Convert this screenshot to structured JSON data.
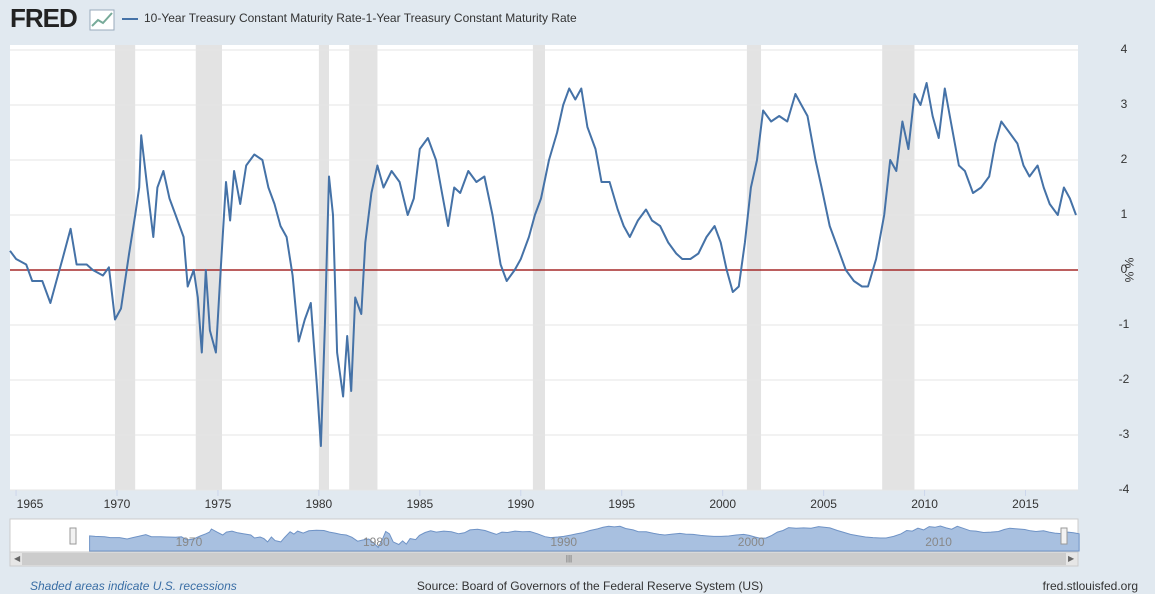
{
  "chart_data": {
    "type": "line",
    "logo": "FRED",
    "legend_position": "top-left",
    "series": [
      {
        "name": "10-Year Treasury Constant Maturity Rate-1-Year Treasury Constant Maturity Rate",
        "color": "#4572a7",
        "x": [
          1964.7,
          1965.0,
          1965.5,
          1965.8,
          1966.3,
          1966.7,
          1967.0,
          1967.3,
          1967.7,
          1968.0,
          1968.5,
          1968.8,
          1969.3,
          1969.6,
          1969.9,
          1970.2,
          1970.6,
          1970.9,
          1971.1,
          1971.2,
          1971.5,
          1971.8,
          1972.0,
          1972.3,
          1972.6,
          1972.9,
          1973.3,
          1973.5,
          1973.8,
          1974.0,
          1974.2,
          1974.4,
          1974.6,
          1974.9,
          1975.1,
          1975.4,
          1975.6,
          1975.8,
          1976.1,
          1976.4,
          1976.8,
          1977.2,
          1977.5,
          1977.8,
          1978.1,
          1978.4,
          1978.7,
          1979.0,
          1979.3,
          1979.6,
          1979.9,
          1980.1,
          1980.3,
          1980.5,
          1980.7,
          1980.9,
          1981.2,
          1981.4,
          1981.6,
          1981.8,
          1982.1,
          1982.3,
          1982.6,
          1982.9,
          1983.2,
          1983.6,
          1984.0,
          1984.4,
          1984.7,
          1985.0,
          1985.4,
          1985.8,
          1986.1,
          1986.4,
          1986.7,
          1987.0,
          1987.4,
          1987.8,
          1988.2,
          1988.6,
          1989.0,
          1989.3,
          1989.7,
          1990.0,
          1990.4,
          1990.7,
          1991.0,
          1991.4,
          1991.8,
          1992.1,
          1992.4,
          1992.7,
          1993.0,
          1993.3,
          1993.7,
          1994.0,
          1994.4,
          1994.8,
          1995.1,
          1995.4,
          1995.8,
          1996.2,
          1996.5,
          1996.9,
          1997.3,
          1997.7,
          1998.0,
          1998.4,
          1998.8,
          1999.2,
          1999.6,
          1999.9,
          2000.2,
          2000.5,
          2000.8,
          2001.1,
          2001.4,
          2001.7,
          2002.0,
          2002.4,
          2002.8,
          2003.2,
          2003.6,
          2003.9,
          2004.2,
          2004.6,
          2004.9,
          2005.3,
          2005.7,
          2006.1,
          2006.5,
          2006.9,
          2007.2,
          2007.6,
          2008.0,
          2008.3,
          2008.6,
          2008.9,
          2009.2,
          2009.5,
          2009.8,
          2010.1,
          2010.4,
          2010.7,
          2011.0,
          2011.3,
          2011.7,
          2012.0,
          2012.4,
          2012.8,
          2013.2,
          2013.5,
          2013.8,
          2014.2,
          2014.6,
          2014.9,
          2015.2,
          2015.6,
          2015.9,
          2016.2,
          2016.6,
          2016.9,
          2017.2,
          2017.5
        ],
        "values": [
          0.35,
          0.2,
          0.1,
          -0.2,
          -0.2,
          -0.6,
          -0.2,
          0.2,
          0.75,
          0.1,
          0.1,
          0.0,
          -0.1,
          0.05,
          -0.9,
          -0.7,
          0.3,
          1.0,
          1.5,
          2.45,
          1.5,
          0.6,
          1.5,
          1.8,
          1.3,
          1.0,
          0.6,
          -0.3,
          0.0,
          -0.5,
          -1.5,
          0.0,
          -1.1,
          -1.5,
          -0.2,
          1.6,
          0.9,
          1.8,
          1.2,
          1.9,
          2.1,
          2.0,
          1.5,
          1.2,
          0.8,
          0.6,
          -0.1,
          -1.3,
          -0.9,
          -0.6,
          -2.1,
          -3.2,
          -1.0,
          1.7,
          1.0,
          -1.5,
          -2.3,
          -1.2,
          -2.2,
          -0.5,
          -0.8,
          0.5,
          1.4,
          1.9,
          1.5,
          1.8,
          1.6,
          1.0,
          1.3,
          2.2,
          2.4,
          2.0,
          1.4,
          0.8,
          1.5,
          1.4,
          1.8,
          1.6,
          1.7,
          1.0,
          0.1,
          -0.2,
          0.0,
          0.2,
          0.6,
          1.0,
          1.3,
          2.0,
          2.5,
          3.0,
          3.3,
          3.1,
          3.3,
          2.6,
          2.2,
          1.6,
          1.6,
          1.1,
          0.8,
          0.6,
          0.9,
          1.1,
          0.9,
          0.8,
          0.5,
          0.3,
          0.2,
          0.2,
          0.3,
          0.6,
          0.8,
          0.5,
          0.0,
          -0.4,
          -0.3,
          0.5,
          1.5,
          2.0,
          2.9,
          2.7,
          2.8,
          2.7,
          3.2,
          3.0,
          2.8,
          2.0,
          1.5,
          0.8,
          0.4,
          0.0,
          -0.2,
          -0.3,
          -0.3,
          0.2,
          1.0,
          2.0,
          1.8,
          2.7,
          2.2,
          3.2,
          3.0,
          3.4,
          2.8,
          2.4,
          3.3,
          2.7,
          1.9,
          1.8,
          1.4,
          1.5,
          1.7,
          2.3,
          2.7,
          2.5,
          2.3,
          1.9,
          1.7,
          1.9,
          1.5,
          1.2,
          1.0,
          1.5,
          1.3,
          1.0
        ]
      }
    ],
    "xlim": [
      1964.7,
      2017.6
    ],
    "xticks": [
      1965,
      1970,
      1975,
      1980,
      1985,
      1990,
      1995,
      2000,
      2005,
      2010,
      2015
    ],
    "ylim": [
      -4,
      4
    ],
    "yticks": [
      4,
      3,
      2,
      1,
      0,
      -1,
      -2,
      -3,
      -4
    ],
    "ylabel": "% %",
    "grid": true,
    "reference_line": {
      "value": 0,
      "color": "#a52a2a"
    },
    "recessions": [
      [
        1969.9,
        1970.9
      ],
      [
        1973.9,
        1975.2
      ],
      [
        1980.0,
        1980.5
      ],
      [
        1981.5,
        1982.9
      ],
      [
        1990.6,
        1991.2
      ],
      [
        2001.2,
        2001.9
      ],
      [
        2007.9,
        2009.5
      ]
    ],
    "recession_color": "#e3e3e3",
    "navigator_xlim": [
      1961.2,
      2016.8
    ],
    "navigator_ticks": [
      1970,
      1980,
      1990,
      2000,
      2010
    ],
    "recession_note": "Shaded areas indicate U.S. recessions",
    "source": "Source: Board of Governors of the Federal Reserve System (US)",
    "site": "fred.stlouisfed.org"
  }
}
